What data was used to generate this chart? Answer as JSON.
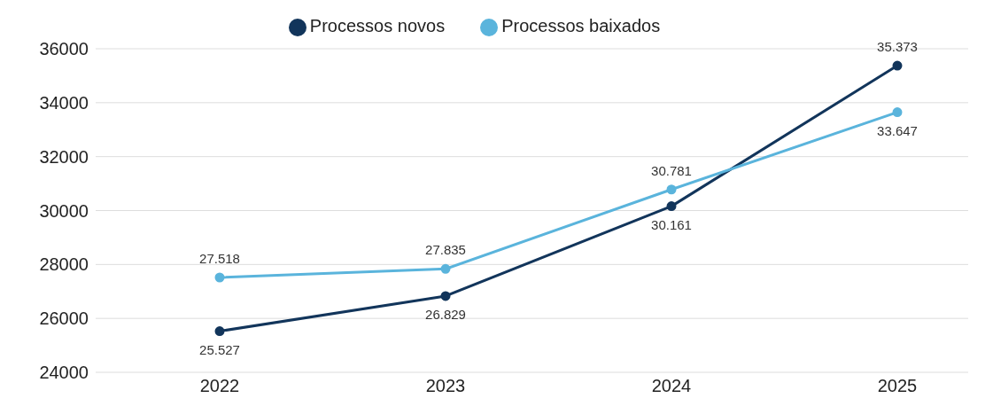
{
  "chart_data": {
    "type": "line",
    "categories": [
      "2022",
      "2023",
      "2024",
      "2025"
    ],
    "series": [
      {
        "name": "Processos novos",
        "color": "#12355b",
        "values": [
          25527,
          26829,
          30161,
          35373
        ],
        "value_labels": [
          "25.527",
          "26.829",
          "30.161",
          "35.373"
        ]
      },
      {
        "name": "Processos baixados",
        "color": "#5ab4dc",
        "values": [
          27518,
          27835,
          30781,
          33647
        ],
        "value_labels": [
          "27.518",
          "27.835",
          "30.781",
          "33.647"
        ]
      }
    ],
    "ylim": [
      24000,
      36000
    ],
    "yticks": [
      24000,
      26000,
      28000,
      30000,
      32000,
      34000,
      36000
    ],
    "grid": "y",
    "legend": "top",
    "marker": "circle",
    "line_style": "solid"
  }
}
